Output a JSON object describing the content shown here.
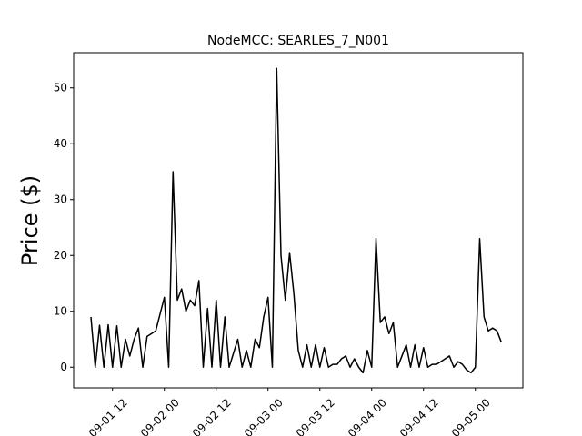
{
  "chart_data": {
    "type": "line",
    "title": "NodeMCC: SEARLES_7_N001",
    "y_label": "Price ($)",
    "x": [
      "09-01 07",
      "09-01 08",
      "09-01 09",
      "09-01 10",
      "09-01 11",
      "09-01 12",
      "09-01 13",
      "09-01 14",
      "09-01 15",
      "09-01 16",
      "09-01 17",
      "09-01 18",
      "09-01 19",
      "09-01 20",
      "09-01 21",
      "09-01 22",
      "09-01 23",
      "09-02 00",
      "09-02 01",
      "09-02 02",
      "09-02 03",
      "09-02 04",
      "09-02 05",
      "09-02 06",
      "09-02 07",
      "09-02 08",
      "09-02 09",
      "09-02 10",
      "09-02 11",
      "09-02 12",
      "09-02 13",
      "09-02 14",
      "09-02 15",
      "09-02 16",
      "09-02 17",
      "09-02 18",
      "09-02 19",
      "09-02 20",
      "09-02 21",
      "09-02 22",
      "09-02 23",
      "09-03 00",
      "09-03 01",
      "09-03 02",
      "09-03 03",
      "09-03 04",
      "09-03 05",
      "09-03 06",
      "09-03 07",
      "09-03 08",
      "09-03 09",
      "09-03 10",
      "09-03 11",
      "09-03 12",
      "09-03 13",
      "09-03 14",
      "09-03 15",
      "09-03 16",
      "09-03 17",
      "09-03 18",
      "09-03 19",
      "09-03 20",
      "09-03 21",
      "09-03 22",
      "09-03 23",
      "09-04 00",
      "09-04 01",
      "09-04 02",
      "09-04 03",
      "09-04 04",
      "09-04 05",
      "09-04 06",
      "09-04 07",
      "09-04 08",
      "09-04 09",
      "09-04 10",
      "09-04 11",
      "09-04 12",
      "09-04 13",
      "09-04 14",
      "09-04 15",
      "09-04 16",
      "09-04 17",
      "09-04 18",
      "09-04 19",
      "09-04 20",
      "09-04 21",
      "09-04 22",
      "09-04 23",
      "09-05 00",
      "09-05 01",
      "09-05 02",
      "09-05 03",
      "09-05 04",
      "09-05 05",
      "09-05 06"
    ],
    "series": [
      {
        "color": "#000000",
        "values": [
          9,
          0,
          7.5,
          0,
          7.6,
          0,
          7.4,
          0,
          5,
          2,
          5,
          7,
          0,
          5.5,
          6,
          6.5,
          9.5,
          12.5,
          0,
          35,
          12,
          14,
          10,
          12,
          11,
          15.5,
          0,
          10.5,
          0,
          12,
          0,
          9,
          0,
          2.5,
          5,
          0,
          3,
          0,
          5,
          3.5,
          9,
          12.5,
          0,
          53.5,
          20,
          12,
          20.5,
          13,
          3,
          0,
          4,
          0,
          4,
          0,
          3.5,
          0,
          0.5,
          0.5,
          1.5,
          2,
          0,
          1.5,
          0,
          -1,
          3,
          0,
          23,
          8,
          9,
          6,
          8,
          0,
          2,
          4,
          0,
          4,
          0,
          3.5,
          0,
          0.5,
          0.5,
          1,
          1.5,
          2,
          0,
          1,
          0.5,
          -0.5,
          -1,
          0,
          23,
          9,
          6.5,
          7,
          6.5,
          4.5
        ]
      }
    ],
    "xlim": [
      "09-01 03",
      "09-05 11"
    ],
    "xticks": [
      "09-01 12",
      "09-02 00",
      "09-02 12",
      "09-03 00",
      "09-03 12",
      "09-04 00",
      "09-04 12",
      "09-05 00"
    ],
    "ylim": [
      -3.7,
      56.3
    ],
    "yticks": [
      0,
      10,
      20,
      30,
      40,
      50
    ]
  }
}
